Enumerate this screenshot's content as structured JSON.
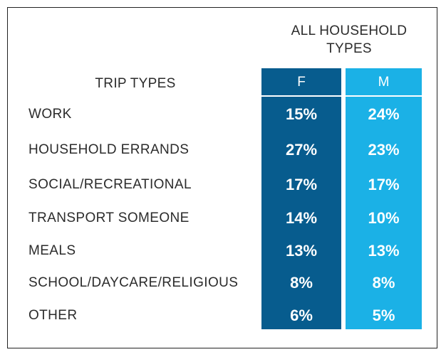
{
  "table": {
    "group_title": "ALL HOUSEHOLD TYPES",
    "row_header": "TRIP TYPES",
    "columns": [
      "F",
      "M"
    ]
  },
  "chart_data": {
    "type": "table",
    "title": "ALL HOUSEHOLD TYPES",
    "row_header": "TRIP TYPES",
    "categories": [
      "WORK",
      "HOUSEHOLD ERRANDS",
      "SOCIAL/RECREATIONAL",
      "TRANSPORT SOMEONE",
      "MEALS",
      "SCHOOL/DAYCARE/RELIGIOUS",
      "OTHER"
    ],
    "series": [
      {
        "name": "F",
        "values": [
          "15%",
          "27%",
          "17%",
          "14%",
          "13%",
          "8%",
          "6%"
        ]
      },
      {
        "name": "M",
        "values": [
          "24%",
          "23%",
          "17%",
          "10%",
          "13%",
          "8%",
          "5%"
        ]
      }
    ]
  },
  "colors": {
    "f_column": "#075c8e",
    "m_column": "#1bb1e6",
    "label_text": "#2b2b2b"
  }
}
